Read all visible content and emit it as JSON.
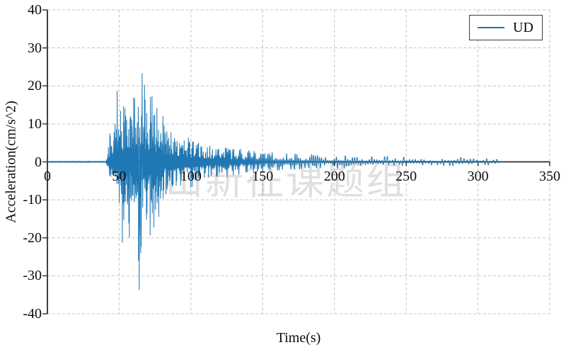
{
  "figure": {
    "xlabel": "Time(s)",
    "ylabel": "Acceleration(cm/s^2)",
    "watermark": "山新征课题组",
    "legend": {
      "label": "UD"
    }
  },
  "style": {
    "series_color": "#1f77b4",
    "axis_color": "#2b2b2b",
    "grid_color": "#c4c4c4",
    "background": "#ffffff",
    "watermark_opacity": 0.12
  },
  "chart_data": {
    "type": "line",
    "chart_kind": "seismic acceleration time history (seismogram)",
    "title": "",
    "xlabel": "Time(s)",
    "ylabel": "Acceleration(cm/s^2)",
    "xlim": [
      0,
      350
    ],
    "ylim": [
      -40,
      40
    ],
    "xticks": [
      0,
      50,
      100,
      150,
      200,
      250,
      300,
      350
    ],
    "yticks": [
      40,
      30,
      20,
      10,
      0,
      -10,
      -20,
      -30,
      -40
    ],
    "grid": "dashed gridlines at every tick, solid x-axis drawn at y=0, solid left spine only",
    "legend": {
      "position": "upper right",
      "entries": [
        "UD"
      ]
    },
    "series": [
      {
        "name": "UD",
        "color": "#1f77b4",
        "time_range_s": [
          0,
          316
        ],
        "quiet_until_s": 41,
        "peak_max": {
          "t": 66,
          "value": 23.3
        },
        "peak_min": {
          "t": 64,
          "value": -33.6
        },
        "envelope_t_pos_neg": [
          [
            0,
            0.2,
            0.2
          ],
          [
            40,
            0.2,
            0.2
          ],
          [
            41.5,
            4,
            3
          ],
          [
            43,
            8,
            6
          ],
          [
            45,
            10,
            9
          ],
          [
            47,
            15,
            12
          ],
          [
            48.5,
            21.5,
            14
          ],
          [
            50,
            13,
            20
          ],
          [
            52,
            16,
            22
          ],
          [
            54,
            21,
            24
          ],
          [
            56,
            18,
            26
          ],
          [
            58,
            17,
            23
          ],
          [
            60,
            20,
            25
          ],
          [
            62,
            19,
            28
          ],
          [
            64,
            21,
            33.6
          ],
          [
            66,
            23.3,
            26
          ],
          [
            68,
            22,
            23
          ],
          [
            70,
            20,
            27
          ],
          [
            72,
            21,
            22
          ],
          [
            74,
            17,
            19
          ],
          [
            76,
            15,
            17
          ],
          [
            78,
            14,
            15
          ],
          [
            80,
            13,
            14
          ],
          [
            83,
            11,
            12
          ],
          [
            86,
            10,
            11
          ],
          [
            90,
            9,
            10
          ],
          [
            95,
            7.5,
            8.5
          ],
          [
            100,
            6.5,
            7.5
          ],
          [
            105,
            6,
            6.5
          ],
          [
            110,
            5,
            5.5
          ],
          [
            115,
            4.5,
            5
          ],
          [
            120,
            4.5,
            4.5
          ],
          [
            125,
            4,
            4.2
          ],
          [
            130,
            3.8,
            4
          ],
          [
            135,
            3.4,
            3.6
          ],
          [
            140,
            3.2,
            3.4
          ],
          [
            145,
            3,
            3.2
          ],
          [
            150,
            3,
            3
          ],
          [
            155,
            2.8,
            2.8
          ],
          [
            160,
            2.6,
            2.8
          ],
          [
            165,
            2.4,
            2.6
          ],
          [
            170,
            2.6,
            2.4
          ],
          [
            175,
            2.4,
            2.2
          ],
          [
            180,
            2.2,
            2.2
          ],
          [
            185,
            2,
            2
          ],
          [
            190,
            2,
            2
          ],
          [
            195,
            1.9,
            1.9
          ],
          [
            200,
            1.8,
            1.8
          ],
          [
            210,
            1.7,
            1.7
          ],
          [
            220,
            1.6,
            1.6
          ],
          [
            230,
            1.5,
            1.5
          ],
          [
            240,
            1.6,
            1.4
          ],
          [
            250,
            1.3,
            1.3
          ],
          [
            260,
            1.2,
            1.2
          ],
          [
            270,
            1.1,
            1.1
          ],
          [
            280,
            1,
            1
          ],
          [
            290,
            1.4,
            1.1
          ],
          [
            295,
            1.2,
            1
          ],
          [
            300,
            0.9,
            0.9
          ],
          [
            308,
            0.8,
            0.8
          ],
          [
            316,
            0.6,
            0.6
          ]
        ]
      }
    ]
  },
  "render": {
    "seed": 20240515,
    "dt": 0.1,
    "freq_points_hz": [
      [
        0,
        2.2
      ],
      [
        41,
        3.0
      ],
      [
        80,
        2.6
      ],
      [
        100,
        2.0
      ],
      [
        130,
        1.3
      ],
      [
        160,
        0.9
      ],
      [
        200,
        0.65
      ],
      [
        250,
        0.5
      ],
      [
        316,
        0.42
      ]
    ]
  }
}
